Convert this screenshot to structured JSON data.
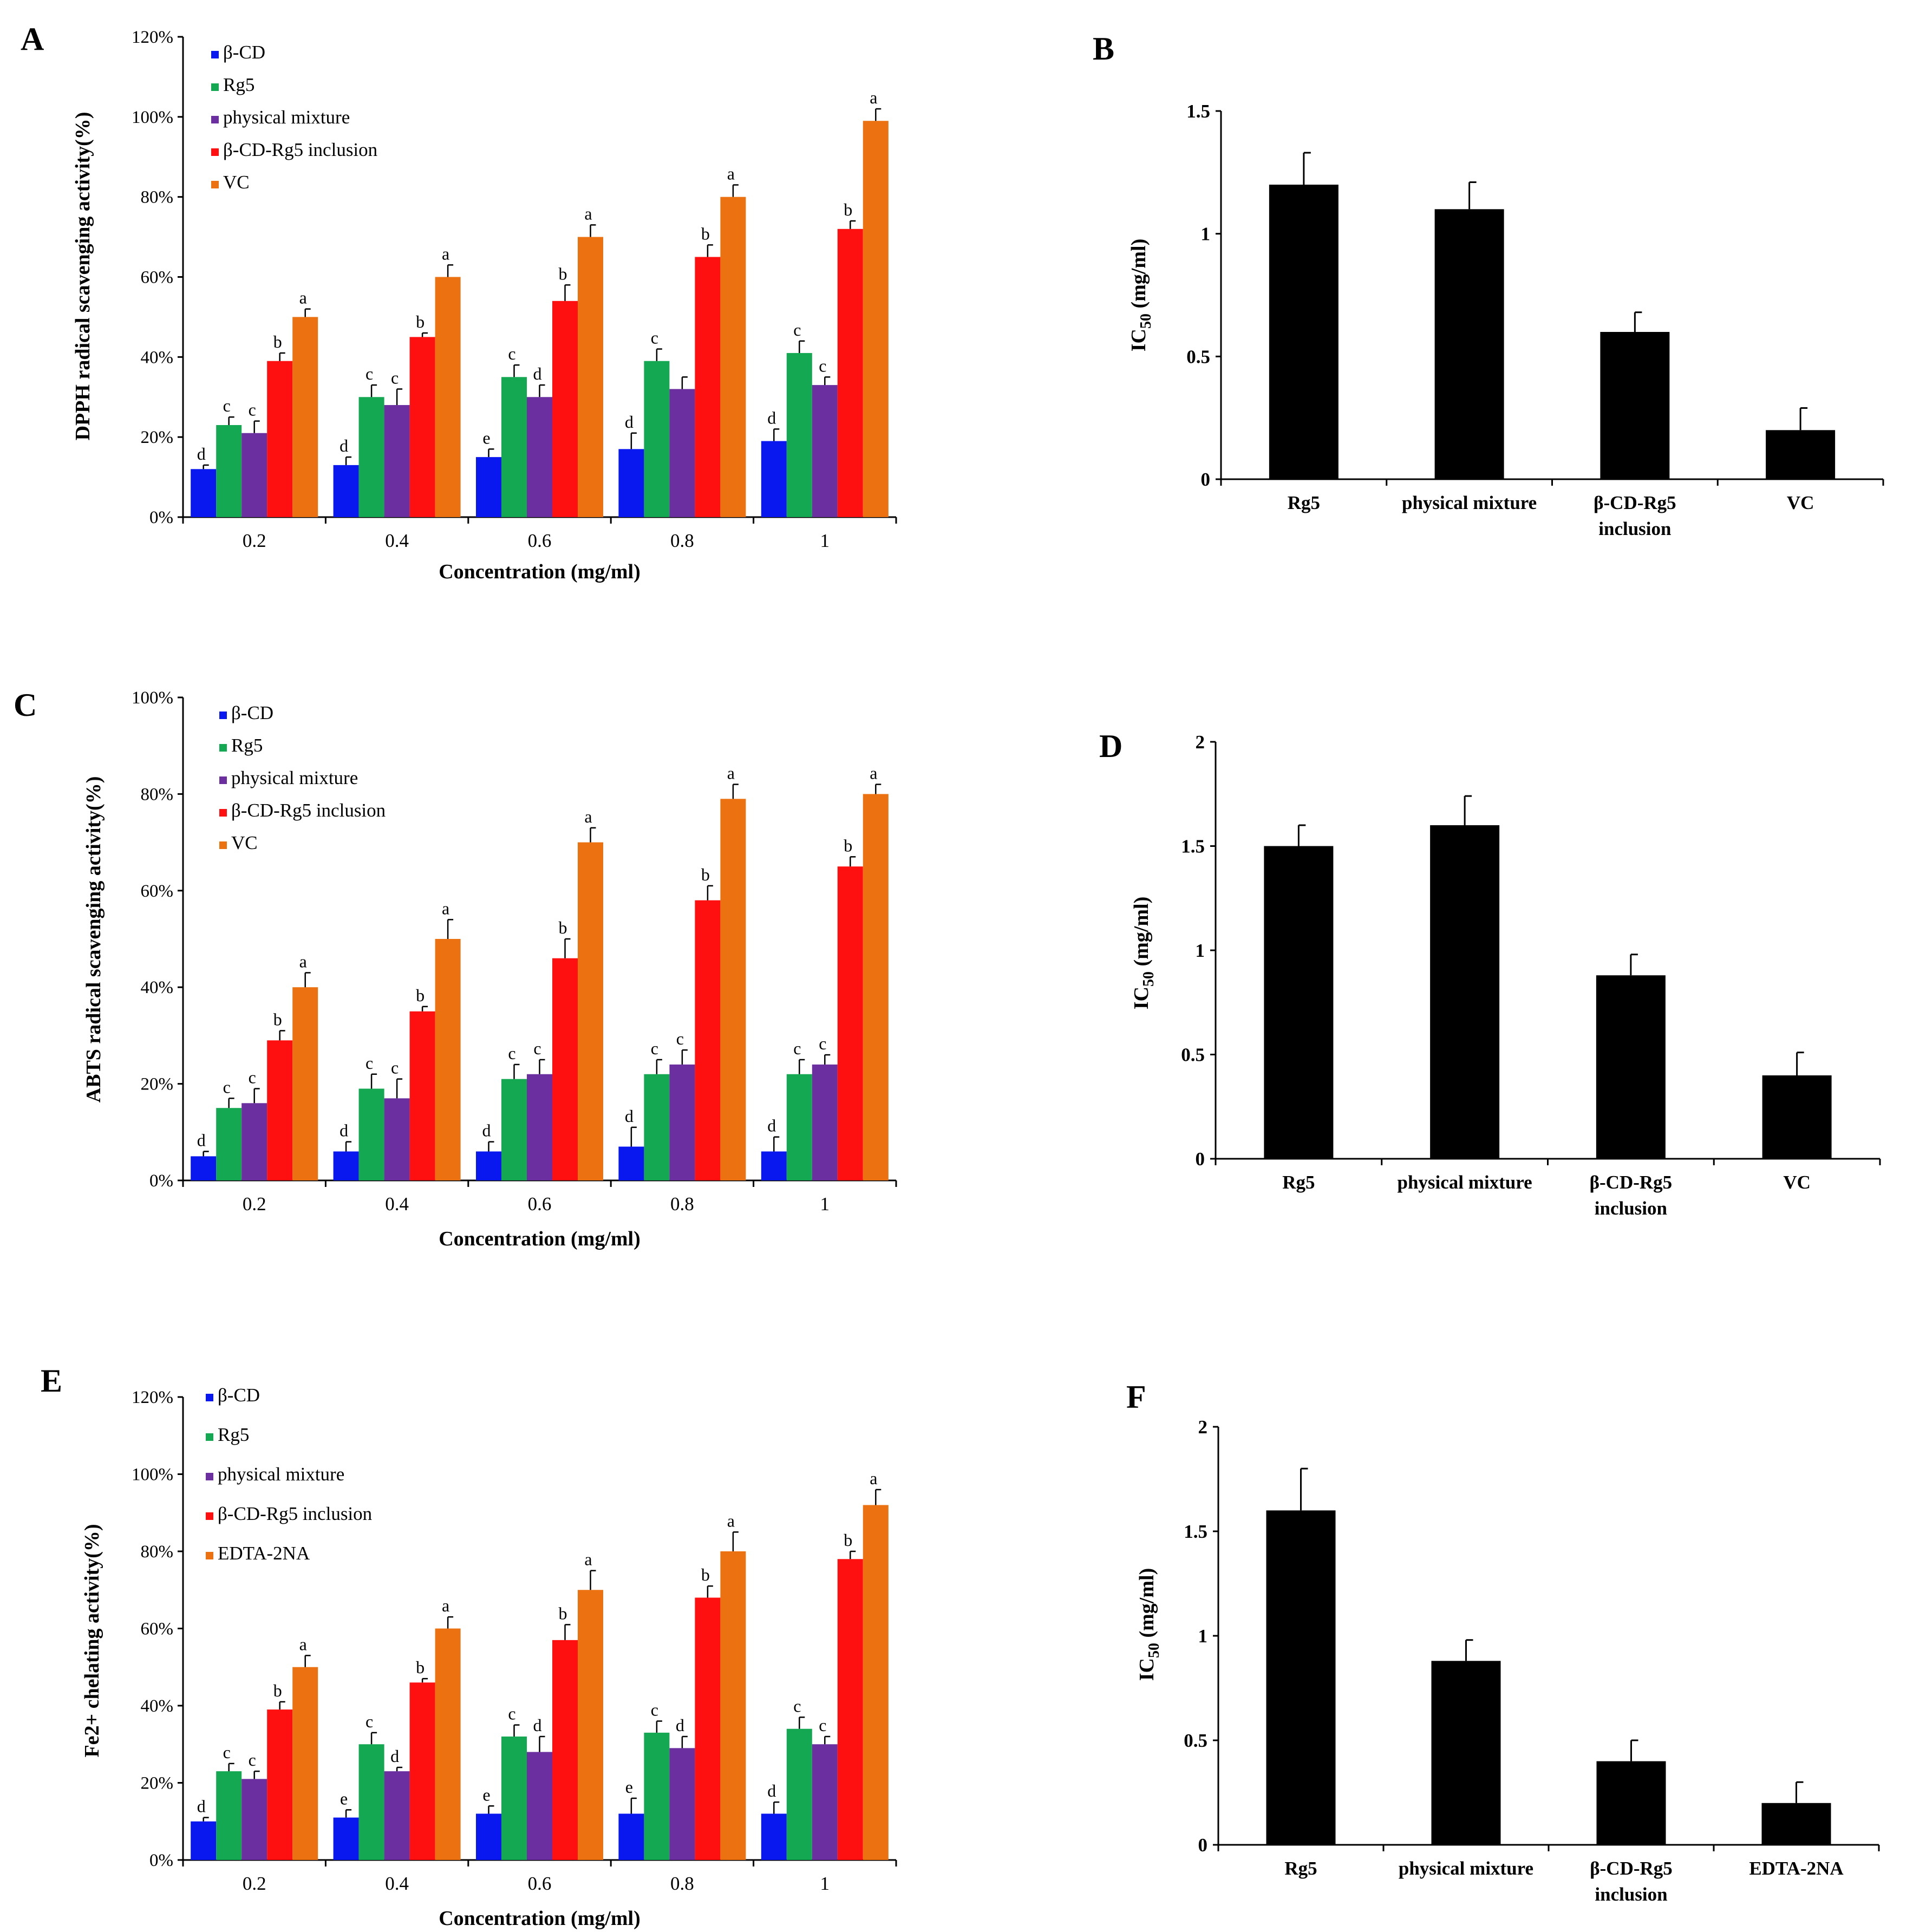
{
  "chart_data": [
    {
      "panel": "A",
      "type": "bar",
      "ylabel": "DPPH radical scavenging activity(%)",
      "xlabel": "Concentration (mg/ml)",
      "categories": [
        "0.2",
        "0.4",
        "0.6",
        "0.8",
        "1"
      ],
      "ylim": [
        0,
        120
      ],
      "yticks": [
        "0%",
        "20%",
        "40%",
        "60%",
        "80%",
        "100%",
        "120%"
      ],
      "legend": "top-left",
      "series": [
        {
          "name": "β-CD",
          "color": "#0a18f0",
          "values": [
            12,
            13,
            15,
            17,
            19
          ],
          "errors": [
            1,
            2,
            2,
            4,
            3
          ],
          "letters": [
            "d",
            "d",
            "e",
            "d",
            "d"
          ]
        },
        {
          "name": "Rg5",
          "color": "#15a852",
          "values": [
            23,
            30,
            35,
            39,
            41
          ],
          "errors": [
            2,
            3,
            3,
            3,
            3
          ],
          "letters": [
            "c",
            "c",
            "c",
            "c",
            "c"
          ]
        },
        {
          "name": "physical mixture",
          "color": "#6b2fa0",
          "values": [
            21,
            28,
            30,
            32,
            33
          ],
          "errors": [
            3,
            4,
            3,
            3,
            2
          ],
          "letters": [
            "c",
            "c",
            "d",
            "",
            "c"
          ]
        },
        {
          "name": "β-CD-Rg5 inclusion",
          "color": "#ff1010",
          "values": [
            39,
            45,
            54,
            65,
            72
          ],
          "errors": [
            2,
            1,
            4,
            3,
            2
          ],
          "letters": [
            "b",
            "b",
            "b",
            "b",
            "b"
          ]
        },
        {
          "name": "VC",
          "color": "#ec7211",
          "values": [
            50,
            60,
            70,
            80,
            99
          ],
          "errors": [
            2,
            3,
            3,
            3,
            3
          ],
          "letters": [
            "a",
            "a",
            "a",
            "a",
            "a"
          ]
        }
      ]
    },
    {
      "panel": "B",
      "type": "bar",
      "ylabel": "IC50 (mg/ml)",
      "ylabel_main": "IC",
      "ylabel_sub": "50",
      "ylabel_rest": " (mg/ml)",
      "categories": [
        "Rg5",
        "physical mixture",
        "β-CD-Rg5\ninclusion",
        "VC"
      ],
      "ylim": [
        0,
        1.5
      ],
      "yticks": [
        "0",
        "0.5",
        "1",
        "1.5"
      ],
      "values": [
        1.2,
        1.1,
        0.6,
        0.2
      ],
      "errors": [
        0.13,
        0.11,
        0.08,
        0.09
      ],
      "color": "#000000"
    },
    {
      "panel": "C",
      "type": "bar",
      "ylabel": "ABTS radical scavenging activity(%)",
      "xlabel": "Concentration (mg/ml)",
      "categories": [
        "0.2",
        "0.4",
        "0.6",
        "0.8",
        "1"
      ],
      "ylim": [
        0,
        100
      ],
      "yticks": [
        "0%",
        "20%",
        "40%",
        "60%",
        "80%",
        "100%"
      ],
      "legend": "top-left",
      "series": [
        {
          "name": "β-CD",
          "color": "#0a18f0",
          "values": [
            5,
            6,
            6,
            7,
            6
          ],
          "errors": [
            1,
            2,
            2,
            4,
            3
          ],
          "letters": [
            "d",
            "d",
            "d",
            "d",
            "d"
          ]
        },
        {
          "name": "Rg5",
          "color": "#15a852",
          "values": [
            15,
            19,
            21,
            22,
            22
          ],
          "errors": [
            2,
            3,
            3,
            3,
            3
          ],
          "letters": [
            "c",
            "c",
            "c",
            "c",
            "c"
          ]
        },
        {
          "name": "physical mixture",
          "color": "#6b2fa0",
          "values": [
            16,
            17,
            22,
            24,
            24
          ],
          "errors": [
            3,
            4,
            3,
            3,
            2
          ],
          "letters": [
            "c",
            "c",
            "c",
            "c",
            "c"
          ]
        },
        {
          "name": "β-CD-Rg5 inclusion",
          "color": "#ff1010",
          "values": [
            29,
            35,
            46,
            58,
            65
          ],
          "errors": [
            2,
            1,
            4,
            3,
            2
          ],
          "letters": [
            "b",
            "b",
            "b",
            "b",
            "b"
          ]
        },
        {
          "name": "VC",
          "color": "#ec7211",
          "values": [
            40,
            50,
            70,
            79,
            80
          ],
          "errors": [
            3,
            4,
            3,
            3,
            2
          ],
          "letters": [
            "a",
            "a",
            "a",
            "a",
            "a"
          ]
        }
      ]
    },
    {
      "panel": "D",
      "type": "bar",
      "ylabel": "IC50 (mg/ml)",
      "ylabel_main": "IC",
      "ylabel_sub": "50",
      "ylabel_rest": " (mg/ml)",
      "categories": [
        "Rg5",
        "physical mixture",
        "β-CD-Rg5\ninclusion",
        "VC"
      ],
      "ylim": [
        0,
        2
      ],
      "yticks": [
        "0",
        "0.5",
        "1",
        "1.5",
        "2"
      ],
      "values": [
        1.5,
        1.6,
        0.88,
        0.4
      ],
      "errors": [
        0.1,
        0.14,
        0.1,
        0.11
      ],
      "color": "#000000"
    },
    {
      "panel": "E",
      "type": "bar",
      "ylabel": "Fe2+ chelating activity(%)",
      "xlabel": "Concentration (mg/ml)",
      "categories": [
        "0.2",
        "0.4",
        "0.6",
        "0.8",
        "1"
      ],
      "ylim": [
        0,
        120
      ],
      "yticks": [
        "0%",
        "20%",
        "40%",
        "60%",
        "80%",
        "100%",
        "120%"
      ],
      "legend": "top-left",
      "series": [
        {
          "name": "β-CD",
          "color": "#0a18f0",
          "values": [
            10,
            11,
            12,
            12,
            12
          ],
          "errors": [
            1,
            2,
            2,
            4,
            3
          ],
          "letters": [
            "d",
            "e",
            "e",
            "e",
            "d"
          ]
        },
        {
          "name": "Rg5",
          "color": "#15a852",
          "values": [
            23,
            30,
            32,
            33,
            34
          ],
          "errors": [
            2,
            3,
            3,
            3,
            3
          ],
          "letters": [
            "c",
            "c",
            "c",
            "c",
            "c"
          ]
        },
        {
          "name": "physical mixture",
          "color": "#6b2fa0",
          "values": [
            21,
            23,
            28,
            29,
            30
          ],
          "errors": [
            2,
            1,
            4,
            3,
            2
          ],
          "letters": [
            "c",
            "d",
            "d",
            "d",
            "c"
          ]
        },
        {
          "name": "β-CD-Rg5 inclusion",
          "color": "#ff1010",
          "values": [
            39,
            46,
            57,
            68,
            78
          ],
          "errors": [
            2,
            1,
            4,
            3,
            2
          ],
          "letters": [
            "b",
            "b",
            "b",
            "b",
            "b"
          ]
        },
        {
          "name": "EDTA-2NA",
          "color": "#ec7211",
          "values": [
            50,
            60,
            70,
            80,
            92
          ],
          "errors": [
            3,
            3,
            5,
            5,
            4
          ],
          "letters": [
            "a",
            "a",
            "a",
            "a",
            "a"
          ]
        }
      ]
    },
    {
      "panel": "F",
      "type": "bar",
      "ylabel": "IC50 (mg/ml)",
      "ylabel_main": "IC",
      "ylabel_sub": "50",
      "ylabel_rest": " (mg/ml)",
      "categories": [
        "Rg5",
        "physical mixture",
        "β-CD-Rg5\ninclusion",
        "EDTA-2NA"
      ],
      "ylim": [
        0,
        2
      ],
      "yticks": [
        "0",
        "0.5",
        "1",
        "1.5",
        "2"
      ],
      "values": [
        1.6,
        0.88,
        0.4,
        0.2
      ],
      "errors": [
        0.2,
        0.1,
        0.1,
        0.1
      ],
      "color": "#000000"
    }
  ]
}
